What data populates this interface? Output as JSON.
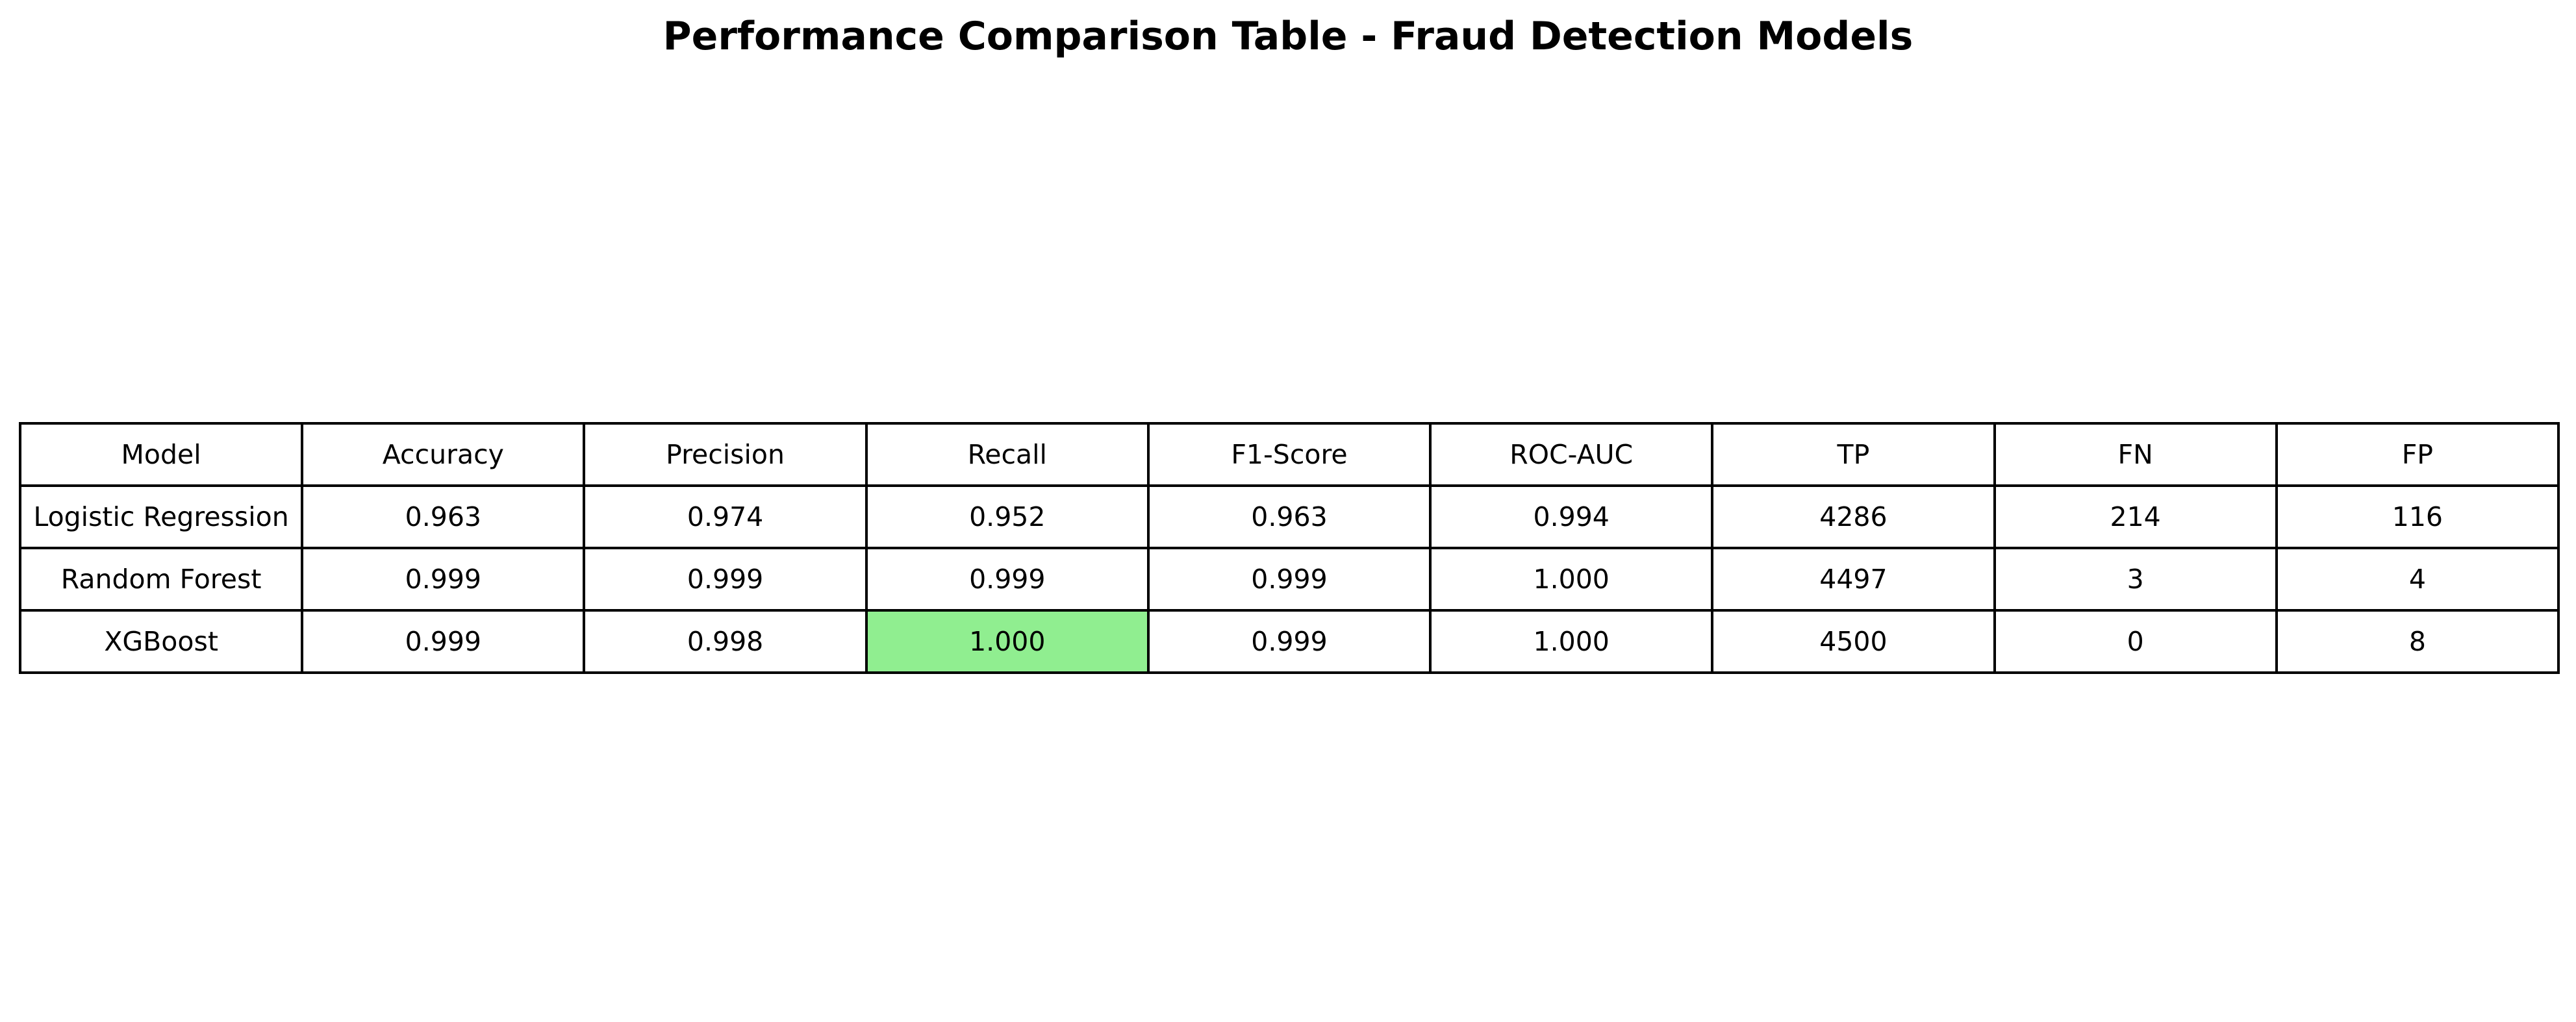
{
  "chart_data": {
    "type": "table",
    "title": "Performance Comparison Table - Fraud Detection Models",
    "columns": [
      "Model",
      "Accuracy",
      "Precision",
      "Recall",
      "F1-Score",
      "ROC-AUC",
      "TP",
      "FN",
      "FP"
    ],
    "rows": [
      [
        "Logistic Regression",
        "0.963",
        "0.974",
        "0.952",
        "0.963",
        "0.994",
        "4286",
        "214",
        "116"
      ],
      [
        "Random Forest",
        "0.999",
        "0.999",
        "0.999",
        "0.999",
        "1.000",
        "4497",
        "3",
        "4"
      ],
      [
        "XGBoost",
        "0.999",
        "0.998",
        "1.000",
        "0.999",
        "1.000",
        "4500",
        "0",
        "8"
      ]
    ],
    "highlight": {
      "row": 2,
      "column": 3,
      "color": "#90ee90"
    },
    "grid": true
  },
  "colors": {
    "background": "#ffffff",
    "border": "#000000",
    "text": "#000000"
  }
}
